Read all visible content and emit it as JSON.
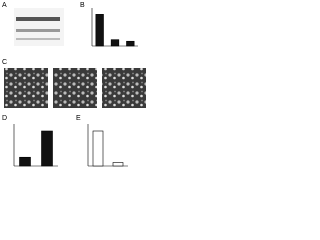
{
  "panels": [
    "A",
    "B",
    "C",
    "D",
    "E"
  ],
  "chart_data": [
    {
      "type": "bar",
      "values": [
        1.0,
        0.2,
        0.15
      ],
      "color": "#111111",
      "ylim": [
        0,
        1.2
      ]
    },
    {
      "type": "bar",
      "values": [
        0.25,
        1.0
      ],
      "color": "#111111",
      "ylim": [
        0,
        1.2
      ]
    },
    {
      "type": "bar",
      "values": [
        1.0,
        0.1
      ],
      "color": "#ffffff",
      "ylim": [
        0,
        1.2
      ]
    }
  ]
}
